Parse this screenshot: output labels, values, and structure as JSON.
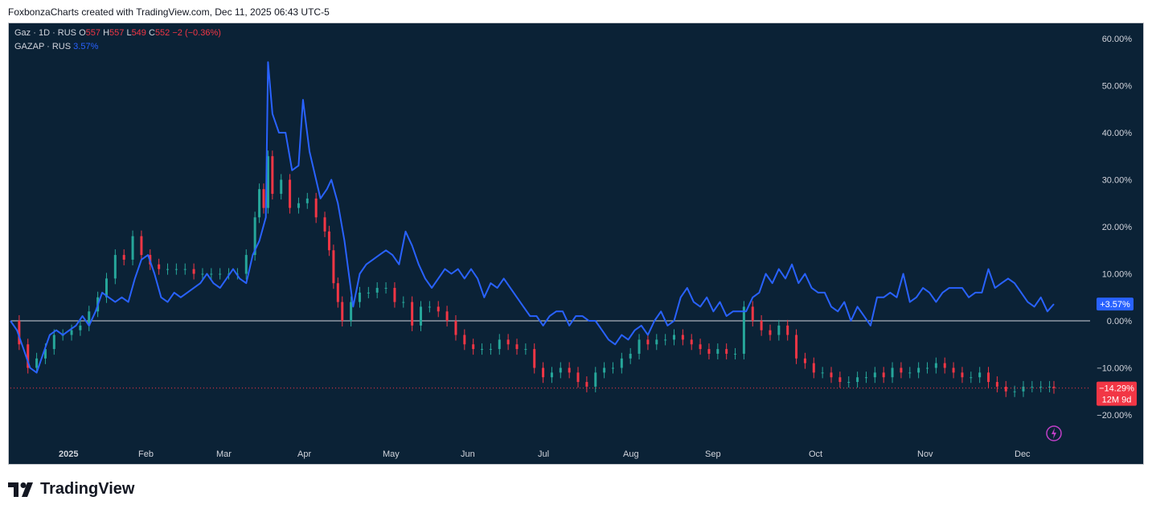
{
  "header": {
    "text": "FoxbonzaCharts created with TradingView.com, Dec 11, 2025 06:43 UTC-5"
  },
  "legend": {
    "main": {
      "symbol": "Gaz · 1D · RUS",
      "o_label": "O",
      "o": "557",
      "h_label": "H",
      "h": "557",
      "l_label": "L",
      "l": "549",
      "c_label": "C",
      "c": "552",
      "change": "−2 (−0.36%)"
    },
    "compare": {
      "symbol": "GAZAP · RUS",
      "value": "3.57%"
    }
  },
  "colors": {
    "background": "#0b2236",
    "up": "#26a69a",
    "down": "#f23645",
    "line": "#2962ff",
    "axis_text": "#d1d4dc",
    "zero_line": "#d1d4dc"
  },
  "badges": {
    "compare_last": "+3.57%",
    "main_last": "−14.29%",
    "main_period": "12M 9d"
  },
  "lightning_icon": "lightning-icon",
  "brand": {
    "name": "TradingView",
    "logo": "tradingview-logo-icon"
  },
  "chart_data": {
    "type": "line",
    "y_unit": "%",
    "ylim": [
      -22,
      63
    ],
    "y_ticks": [
      "60.00%",
      "50.00%",
      "40.00%",
      "30.00%",
      "20.00%",
      "10.00%",
      "0.00%",
      "−10.00%",
      "−20.00%"
    ],
    "x_ticks": [
      "2025",
      "Feb",
      "Mar",
      "Apr",
      "May",
      "Jun",
      "Jul",
      "Aug",
      "Sep",
      "Oct",
      "Nov",
      "Dec"
    ],
    "grid": false,
    "zero_line": true,
    "series": [
      {
        "name": "GAZAP · RUS",
        "style": "line",
        "points": [
          [
            0,
            0
          ],
          [
            3,
            -2
          ],
          [
            6,
            -6
          ],
          [
            9,
            -10
          ],
          [
            12,
            -11
          ],
          [
            15,
            -7
          ],
          [
            18,
            -3
          ],
          [
            21,
            -2
          ],
          [
            24,
            -3
          ],
          [
            27,
            -2
          ],
          [
            30,
            -1
          ],
          [
            33,
            1
          ],
          [
            36,
            -1
          ],
          [
            39,
            2
          ],
          [
            42,
            6
          ],
          [
            45,
            5
          ],
          [
            48,
            4
          ],
          [
            51,
            5
          ],
          [
            54,
            4
          ],
          [
            57,
            9
          ],
          [
            60,
            13
          ],
          [
            63,
            14
          ],
          [
            66,
            10
          ],
          [
            69,
            5
          ],
          [
            72,
            4
          ],
          [
            75,
            6
          ],
          [
            78,
            5
          ],
          [
            81,
            6
          ],
          [
            84,
            7
          ],
          [
            87,
            8
          ],
          [
            90,
            10
          ],
          [
            93,
            8
          ],
          [
            96,
            7
          ],
          [
            99,
            9
          ],
          [
            102,
            11
          ],
          [
            105,
            9
          ],
          [
            108,
            8
          ],
          [
            111,
            14
          ],
          [
            114,
            17
          ],
          [
            117,
            22
          ],
          [
            118,
            55
          ],
          [
            120,
            44
          ],
          [
            123,
            40
          ],
          [
            126,
            40
          ],
          [
            129,
            32
          ],
          [
            132,
            33
          ],
          [
            134,
            47
          ],
          [
            137,
            36
          ],
          [
            140,
            30
          ],
          [
            142,
            26
          ],
          [
            145,
            28
          ],
          [
            147,
            30
          ],
          [
            150,
            25
          ],
          [
            153,
            17
          ],
          [
            155,
            10
          ],
          [
            157,
            3
          ],
          [
            160,
            10
          ],
          [
            163,
            12
          ],
          [
            166,
            13
          ],
          [
            169,
            14
          ],
          [
            172,
            15
          ],
          [
            175,
            14
          ],
          [
            178,
            12
          ],
          [
            181,
            19
          ],
          [
            184,
            16
          ],
          [
            187,
            12
          ],
          [
            190,
            9
          ],
          [
            193,
            7
          ],
          [
            196,
            9
          ],
          [
            199,
            11
          ],
          [
            202,
            10
          ],
          [
            205,
            11
          ],
          [
            208,
            9
          ],
          [
            211,
            11
          ],
          [
            214,
            9
          ],
          [
            217,
            5
          ],
          [
            220,
            8
          ],
          [
            223,
            7
          ],
          [
            226,
            9
          ],
          [
            229,
            7
          ],
          [
            232,
            5
          ],
          [
            235,
            3
          ],
          [
            238,
            1
          ],
          [
            241,
            1
          ],
          [
            244,
            -1
          ],
          [
            247,
            1
          ],
          [
            250,
            2
          ],
          [
            253,
            2
          ],
          [
            256,
            -1
          ],
          [
            259,
            1
          ],
          [
            262,
            1
          ],
          [
            265,
            0
          ],
          [
            268,
            0
          ],
          [
            271,
            -2
          ],
          [
            274,
            -4
          ],
          [
            277,
            -5
          ],
          [
            280,
            -3
          ],
          [
            283,
            -4
          ],
          [
            286,
            -2
          ],
          [
            289,
            -1
          ],
          [
            292,
            -3
          ],
          [
            295,
            0
          ],
          [
            298,
            2
          ],
          [
            301,
            -1
          ],
          [
            304,
            0
          ],
          [
            307,
            5
          ],
          [
            310,
            7
          ],
          [
            313,
            4
          ],
          [
            316,
            3
          ],
          [
            319,
            5
          ],
          [
            322,
            2
          ],
          [
            325,
            4
          ],
          [
            328,
            1
          ],
          [
            331,
            2
          ],
          [
            334,
            2
          ],
          [
            337,
            2
          ],
          [
            340,
            5
          ],
          [
            343,
            6
          ],
          [
            346,
            10
          ],
          [
            349,
            8
          ],
          [
            352,
            11
          ],
          [
            355,
            9
          ],
          [
            358,
            12
          ],
          [
            361,
            8
          ],
          [
            364,
            10
          ],
          [
            367,
            7
          ],
          [
            370,
            6
          ],
          [
            373,
            6
          ],
          [
            376,
            3
          ],
          [
            379,
            2
          ],
          [
            382,
            4
          ],
          [
            385,
            0
          ],
          [
            388,
            3
          ],
          [
            391,
            1
          ],
          [
            394,
            -1
          ],
          [
            397,
            5
          ],
          [
            400,
            5
          ],
          [
            403,
            6
          ],
          [
            406,
            5
          ],
          [
            409,
            10
          ],
          [
            412,
            4
          ],
          [
            415,
            5
          ],
          [
            418,
            7
          ],
          [
            421,
            6
          ],
          [
            424,
            4
          ],
          [
            427,
            6
          ],
          [
            430,
            7
          ],
          [
            433,
            7
          ],
          [
            436,
            7
          ],
          [
            439,
            5
          ],
          [
            442,
            6
          ],
          [
            445,
            6
          ],
          [
            448,
            11
          ],
          [
            451,
            7
          ],
          [
            454,
            8
          ],
          [
            457,
            9
          ],
          [
            460,
            8
          ],
          [
            463,
            6
          ],
          [
            466,
            4
          ],
          [
            469,
            3
          ],
          [
            472,
            5
          ],
          [
            475,
            2
          ],
          [
            478,
            3.57
          ]
        ]
      },
      {
        "name": "Gaz · 1D · RUS",
        "style": "candles",
        "points": [
          [
            0,
            0
          ],
          [
            4,
            -5
          ],
          [
            8,
            -10
          ],
          [
            12,
            -8
          ],
          [
            16,
            -6
          ],
          [
            20,
            -3
          ],
          [
            24,
            -3
          ],
          [
            28,
            -2
          ],
          [
            32,
            -1
          ],
          [
            36,
            2
          ],
          [
            40,
            5
          ],
          [
            44,
            9
          ],
          [
            48,
            14
          ],
          [
            52,
            13
          ],
          [
            56,
            18
          ],
          [
            60,
            14
          ],
          [
            64,
            12
          ],
          [
            68,
            11
          ],
          [
            72,
            11
          ],
          [
            76,
            11
          ],
          [
            80,
            11
          ],
          [
            84,
            10
          ],
          [
            88,
            10
          ],
          [
            92,
            10
          ],
          [
            96,
            10
          ],
          [
            100,
            10
          ],
          [
            104,
            10
          ],
          [
            108,
            14
          ],
          [
            112,
            22
          ],
          [
            114,
            28
          ],
          [
            116,
            24
          ],
          [
            118,
            35
          ],
          [
            120,
            27
          ],
          [
            124,
            30
          ],
          [
            128,
            24
          ],
          [
            132,
            25
          ],
          [
            136,
            26
          ],
          [
            140,
            22
          ],
          [
            144,
            19
          ],
          [
            146,
            15
          ],
          [
            148,
            8
          ],
          [
            150,
            4
          ],
          [
            152,
            0
          ],
          [
            156,
            4
          ],
          [
            160,
            6
          ],
          [
            164,
            6
          ],
          [
            168,
            7
          ],
          [
            172,
            7
          ],
          [
            176,
            4
          ],
          [
            180,
            4
          ],
          [
            184,
            -1
          ],
          [
            188,
            3
          ],
          [
            192,
            3
          ],
          [
            196,
            2
          ],
          [
            200,
            0
          ],
          [
            204,
            -3
          ],
          [
            208,
            -5
          ],
          [
            212,
            -6
          ],
          [
            216,
            -6
          ],
          [
            220,
            -6
          ],
          [
            224,
            -4
          ],
          [
            228,
            -5
          ],
          [
            232,
            -6
          ],
          [
            236,
            -6
          ],
          [
            240,
            -10
          ],
          [
            244,
            -12
          ],
          [
            248,
            -11
          ],
          [
            252,
            -10
          ],
          [
            256,
            -11
          ],
          [
            260,
            -13
          ],
          [
            264,
            -14
          ],
          [
            268,
            -11
          ],
          [
            272,
            -10
          ],
          [
            276,
            -10
          ],
          [
            280,
            -8
          ],
          [
            284,
            -7
          ],
          [
            288,
            -4
          ],
          [
            292,
            -5
          ],
          [
            296,
            -4
          ],
          [
            300,
            -4
          ],
          [
            304,
            -3
          ],
          [
            308,
            -4
          ],
          [
            312,
            -5
          ],
          [
            316,
            -6
          ],
          [
            320,
            -7
          ],
          [
            324,
            -6
          ],
          [
            328,
            -7
          ],
          [
            332,
            -7
          ],
          [
            336,
            3
          ],
          [
            340,
            0
          ],
          [
            344,
            -2
          ],
          [
            348,
            -3
          ],
          [
            352,
            -1
          ],
          [
            356,
            -3
          ],
          [
            360,
            -8
          ],
          [
            364,
            -9
          ],
          [
            368,
            -11
          ],
          [
            372,
            -11
          ],
          [
            376,
            -12
          ],
          [
            380,
            -13
          ],
          [
            384,
            -13
          ],
          [
            388,
            -12
          ],
          [
            392,
            -12
          ],
          [
            396,
            -11
          ],
          [
            400,
            -12
          ],
          [
            404,
            -10
          ],
          [
            408,
            -11
          ],
          [
            412,
            -11
          ],
          [
            416,
            -10
          ],
          [
            420,
            -10
          ],
          [
            424,
            -9
          ],
          [
            428,
            -10
          ],
          [
            432,
            -11
          ],
          [
            436,
            -12
          ],
          [
            440,
            -12
          ],
          [
            444,
            -11
          ],
          [
            448,
            -13
          ],
          [
            452,
            -14
          ],
          [
            456,
            -15
          ],
          [
            460,
            -15
          ],
          [
            464,
            -14
          ],
          [
            468,
            -14
          ],
          [
            472,
            -14
          ],
          [
            476,
            -14
          ],
          [
            478,
            -14.29
          ]
        ]
      }
    ]
  }
}
